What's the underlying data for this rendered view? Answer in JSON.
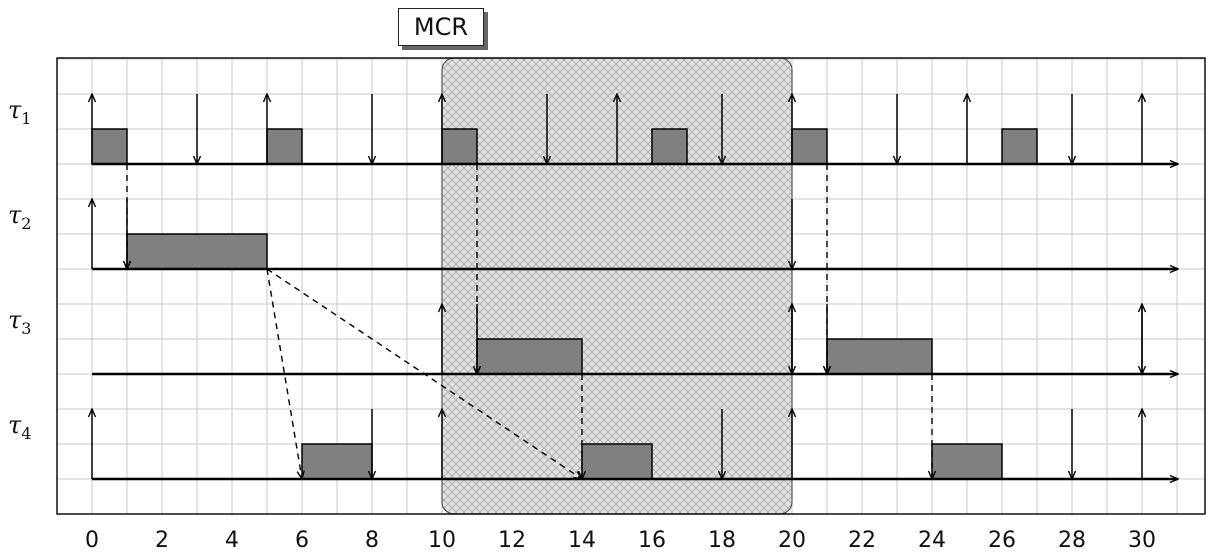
{
  "mcr_label": "MCR",
  "x_ticks": [
    "0",
    "2",
    "4",
    "6",
    "8",
    "10",
    "12",
    "14",
    "16",
    "18",
    "20",
    "22",
    "24",
    "26",
    "28",
    "30"
  ],
  "mcr_window": [
    10,
    20
  ],
  "tasks": [
    {
      "symbol": "τ",
      "sub": "1",
      "releases": [
        0,
        5,
        10,
        15,
        20,
        25,
        30
      ],
      "deadlines": [
        3,
        8,
        13,
        18,
        23,
        28
      ],
      "jobs": [
        [
          0,
          1
        ],
        [
          5,
          6
        ],
        [
          10,
          11
        ],
        [
          16,
          17
        ],
        [
          20,
          21
        ],
        [
          26,
          27
        ]
      ]
    },
    {
      "symbol": "τ",
      "sub": "2",
      "releases": [
        0
      ],
      "deadlines": [
        1,
        20
      ],
      "jobs": [
        [
          1,
          5
        ]
      ]
    },
    {
      "symbol": "τ",
      "sub": "3",
      "releases": [
        10,
        20,
        30
      ],
      "deadlines": [
        11,
        20,
        21,
        30
      ],
      "jobs": [
        [
          11,
          14
        ],
        [
          21,
          24
        ]
      ]
    },
    {
      "symbol": "τ",
      "sub": "4",
      "releases": [
        0,
        10,
        20,
        30
      ],
      "deadlines": [
        8,
        18,
        28
      ],
      "jobs": [
        [
          6,
          8
        ],
        [
          14,
          16
        ],
        [
          24,
          26
        ]
      ]
    }
  ],
  "dependencies": [
    {
      "from": [
        1,
        0
      ],
      "to": [
        1,
        1
      ],
      "type": "vertical"
    },
    {
      "from": [
        11,
        0
      ],
      "to": [
        11,
        2
      ],
      "type": "vertical"
    },
    {
      "from": [
        21,
        0
      ],
      "to": [
        21,
        2
      ],
      "type": "vertical"
    },
    {
      "from": [
        14,
        2
      ],
      "to": [
        14,
        3
      ],
      "type": "vertical"
    },
    {
      "from": [
        24,
        2
      ],
      "to": [
        24,
        3
      ],
      "type": "vertical"
    },
    {
      "from": [
        5,
        1
      ],
      "to": [
        6,
        3
      ],
      "type": "diagonal"
    },
    {
      "from": [
        5,
        1
      ],
      "to": [
        14,
        3
      ],
      "type": "diagonal"
    }
  ],
  "colors": {
    "job_fill": "#808080",
    "grid": "#c8c8c8",
    "axis": "#000000",
    "mcr_fill": "#d8d8d8"
  }
}
